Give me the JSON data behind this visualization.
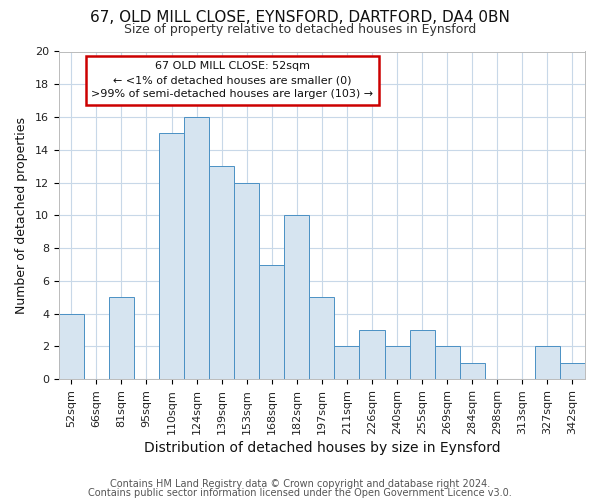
{
  "title1": "67, OLD MILL CLOSE, EYNSFORD, DARTFORD, DA4 0BN",
  "title2": "Size of property relative to detached houses in Eynsford",
  "xlabel": "Distribution of detached houses by size in Eynsford",
  "ylabel": "Number of detached properties",
  "categories": [
    "52sqm",
    "66sqm",
    "81sqm",
    "95sqm",
    "110sqm",
    "124sqm",
    "139sqm",
    "153sqm",
    "168sqm",
    "182sqm",
    "197sqm",
    "211sqm",
    "226sqm",
    "240sqm",
    "255sqm",
    "269sqm",
    "284sqm",
    "298sqm",
    "313sqm",
    "327sqm",
    "342sqm"
  ],
  "values": [
    4,
    0,
    5,
    0,
    15,
    16,
    13,
    12,
    7,
    10,
    5,
    2,
    3,
    2,
    3,
    2,
    1,
    0,
    0,
    2,
    1
  ],
  "bar_color": "#d6e4f0",
  "bar_edge_color": "#4a90c4",
  "annotation_box_color": "#cc0000",
  "annotation_line1": "67 OLD MILL CLOSE: 52sqm",
  "annotation_line2": "← <1% of detached houses are smaller (0)",
  "annotation_line3": ">99% of semi-detached houses are larger (103) →",
  "background_color": "#ffffff",
  "grid_color": "#c8d8e8",
  "ylim": [
    0,
    20
  ],
  "yticks": [
    0,
    2,
    4,
    6,
    8,
    10,
    12,
    14,
    16,
    18,
    20
  ],
  "footer1": "Contains HM Land Registry data © Crown copyright and database right 2024.",
  "footer2": "Contains public sector information licensed under the Open Government Licence v3.0.",
  "title1_fontsize": 11,
  "title2_fontsize": 9,
  "xlabel_fontsize": 10,
  "ylabel_fontsize": 9,
  "tick_fontsize": 8,
  "annotation_fontsize": 8,
  "footer_fontsize": 7
}
